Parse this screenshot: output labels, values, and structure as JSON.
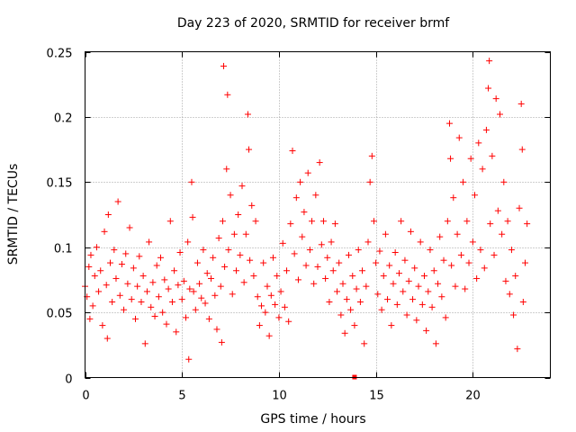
{
  "chart_data": {
    "type": "scatter",
    "title": "Day 223 of 2020, SRMTID for receiver brmf",
    "xlabel": "GPS time / hours",
    "ylabel": "SRMTID / TECUs",
    "xlim": [
      0,
      24
    ],
    "ylim": [
      0,
      0.25
    ],
    "xticks": [
      0,
      5,
      10,
      15,
      20
    ],
    "yticks": [
      0,
      0.05,
      0.1,
      0.15,
      0.2,
      0.25
    ],
    "xtick_labels": [
      "0",
      "5",
      "10",
      "15",
      "20"
    ],
    "ytick_labels": [
      "0",
      "0.05",
      "0.1",
      "0.15",
      "0.2",
      "0.25"
    ],
    "grid": true,
    "marker": "+",
    "color": "#ff0000",
    "series": [
      {
        "name": "SRMTID",
        "points": [
          [
            0.0,
            0.07
          ],
          [
            0.1,
            0.062
          ],
          [
            0.2,
            0.085
          ],
          [
            0.25,
            0.045
          ],
          [
            0.3,
            0.094
          ],
          [
            0.4,
            0.055
          ],
          [
            0.5,
            0.078
          ],
          [
            0.6,
            0.1
          ],
          [
            0.7,
            0.066
          ],
          [
            0.8,
            0.082
          ],
          [
            0.9,
            0.04
          ],
          [
            1.0,
            0.112
          ],
          [
            1.1,
            0.071
          ],
          [
            1.15,
            0.03
          ],
          [
            1.2,
            0.125
          ],
          [
            1.3,
            0.088
          ],
          [
            1.4,
            0.058
          ],
          [
            1.5,
            0.098
          ],
          [
            1.6,
            0.076
          ],
          [
            1.7,
            0.135
          ],
          [
            1.8,
            0.063
          ],
          [
            1.9,
            0.087
          ],
          [
            2.0,
            0.052
          ],
          [
            2.1,
            0.095
          ],
          [
            2.2,
            0.072
          ],
          [
            2.3,
            0.115
          ],
          [
            2.4,
            0.06
          ],
          [
            2.5,
            0.084
          ],
          [
            2.6,
            0.045
          ],
          [
            2.7,
            0.07
          ],
          [
            2.8,
            0.093
          ],
          [
            2.9,
            0.058
          ],
          [
            3.0,
            0.078
          ],
          [
            3.1,
            0.026
          ],
          [
            3.2,
            0.066
          ],
          [
            3.3,
            0.104
          ],
          [
            3.4,
            0.054
          ],
          [
            3.5,
            0.073
          ],
          [
            3.6,
            0.047
          ],
          [
            3.7,
            0.086
          ],
          [
            3.8,
            0.062
          ],
          [
            3.9,
            0.092
          ],
          [
            4.0,
            0.05
          ],
          [
            4.1,
            0.075
          ],
          [
            4.2,
            0.041
          ],
          [
            4.3,
            0.068
          ],
          [
            4.4,
            0.12
          ],
          [
            4.5,
            0.058
          ],
          [
            4.6,
            0.082
          ],
          [
            4.7,
            0.035
          ],
          [
            4.8,
            0.071
          ],
          [
            4.9,
            0.096
          ],
          [
            5.0,
            0.06
          ],
          [
            5.1,
            0.074
          ],
          [
            5.2,
            0.046
          ],
          [
            5.3,
            0.104
          ],
          [
            5.35,
            0.014
          ],
          [
            5.4,
            0.068
          ],
          [
            5.5,
            0.15
          ],
          [
            5.55,
            0.123
          ],
          [
            5.6,
            0.066
          ],
          [
            5.7,
            0.052
          ],
          [
            5.8,
            0.088
          ],
          [
            5.9,
            0.072
          ],
          [
            6.0,
            0.061
          ],
          [
            6.1,
            0.098
          ],
          [
            6.2,
            0.057
          ],
          [
            6.3,
            0.08
          ],
          [
            6.4,
            0.045
          ],
          [
            6.5,
            0.076
          ],
          [
            6.6,
            0.092
          ],
          [
            6.7,
            0.063
          ],
          [
            6.8,
            0.037
          ],
          [
            6.9,
            0.107
          ],
          [
            7.0,
            0.07
          ],
          [
            7.05,
            0.027
          ],
          [
            7.1,
            0.12
          ],
          [
            7.15,
            0.239
          ],
          [
            7.2,
            0.085
          ],
          [
            7.3,
            0.16
          ],
          [
            7.35,
            0.217
          ],
          [
            7.4,
            0.098
          ],
          [
            7.5,
            0.14
          ],
          [
            7.6,
            0.064
          ],
          [
            7.7,
            0.11
          ],
          [
            7.8,
            0.082
          ],
          [
            7.9,
            0.125
          ],
          [
            8.0,
            0.094
          ],
          [
            8.1,
            0.147
          ],
          [
            8.2,
            0.073
          ],
          [
            8.3,
            0.11
          ],
          [
            8.4,
            0.202
          ],
          [
            8.45,
            0.175
          ],
          [
            8.5,
            0.09
          ],
          [
            8.6,
            0.132
          ],
          [
            8.7,
            0.078
          ],
          [
            8.8,
            0.12
          ],
          [
            8.9,
            0.062
          ],
          [
            9.0,
            0.04
          ],
          [
            9.1,
            0.055
          ],
          [
            9.2,
            0.088
          ],
          [
            9.3,
            0.05
          ],
          [
            9.4,
            0.07
          ],
          [
            9.5,
            0.032
          ],
          [
            9.6,
            0.063
          ],
          [
            9.7,
            0.092
          ],
          [
            9.8,
            0.056
          ],
          [
            9.9,
            0.078
          ],
          [
            10.0,
            0.046
          ],
          [
            10.1,
            0.066
          ],
          [
            10.2,
            0.103
          ],
          [
            10.3,
            0.054
          ],
          [
            10.4,
            0.082
          ],
          [
            10.5,
            0.043
          ],
          [
            10.6,
            0.118
          ],
          [
            10.7,
            0.174
          ],
          [
            10.8,
            0.095
          ],
          [
            10.9,
            0.138
          ],
          [
            11.0,
            0.075
          ],
          [
            11.1,
            0.15
          ],
          [
            11.2,
            0.108
          ],
          [
            11.3,
            0.127
          ],
          [
            11.4,
            0.086
          ],
          [
            11.5,
            0.157
          ],
          [
            11.6,
            0.098
          ],
          [
            11.7,
            0.12
          ],
          [
            11.8,
            0.072
          ],
          [
            11.9,
            0.14
          ],
          [
            12.0,
            0.085
          ],
          [
            12.1,
            0.165
          ],
          [
            12.2,
            0.102
          ],
          [
            12.3,
            0.12
          ],
          [
            12.4,
            0.076
          ],
          [
            12.5,
            0.092
          ],
          [
            12.6,
            0.058
          ],
          [
            12.7,
            0.104
          ],
          [
            12.8,
            0.082
          ],
          [
            12.9,
            0.118
          ],
          [
            13.0,
            0.066
          ],
          [
            13.1,
            0.088
          ],
          [
            13.2,
            0.048
          ],
          [
            13.3,
            0.072
          ],
          [
            13.4,
            0.034
          ],
          [
            13.5,
            0.06
          ],
          [
            13.6,
            0.094
          ],
          [
            13.7,
            0.052
          ],
          [
            13.8,
            0.078
          ],
          [
            13.9,
            0.04
          ],
          [
            14.0,
            0.068
          ],
          [
            14.1,
            0.098
          ],
          [
            14.2,
            0.058
          ],
          [
            14.3,
            0.082
          ],
          [
            14.4,
            0.026
          ],
          [
            14.5,
            0.07
          ],
          [
            14.6,
            0.104
          ],
          [
            14.7,
            0.15
          ],
          [
            14.8,
            0.17
          ],
          [
            14.9,
            0.12
          ],
          [
            15.0,
            0.088
          ],
          [
            15.1,
            0.064
          ],
          [
            15.2,
            0.097
          ],
          [
            15.3,
            0.052
          ],
          [
            15.4,
            0.078
          ],
          [
            15.5,
            0.11
          ],
          [
            15.6,
            0.06
          ],
          [
            15.7,
            0.086
          ],
          [
            15.8,
            0.04
          ],
          [
            15.9,
            0.072
          ],
          [
            16.0,
            0.096
          ],
          [
            16.1,
            0.056
          ],
          [
            16.2,
            0.08
          ],
          [
            16.3,
            0.12
          ],
          [
            16.4,
            0.066
          ],
          [
            16.5,
            0.09
          ],
          [
            16.6,
            0.048
          ],
          [
            16.7,
            0.074
          ],
          [
            16.8,
            0.112
          ],
          [
            16.9,
            0.06
          ],
          [
            17.0,
            0.084
          ],
          [
            17.1,
            0.044
          ],
          [
            17.2,
            0.07
          ],
          [
            17.3,
            0.104
          ],
          [
            17.4,
            0.056
          ],
          [
            17.5,
            0.078
          ],
          [
            17.6,
            0.036
          ],
          [
            17.7,
            0.066
          ],
          [
            17.8,
            0.098
          ],
          [
            17.9,
            0.054
          ],
          [
            18.0,
            0.082
          ],
          [
            18.1,
            0.026
          ],
          [
            18.2,
            0.072
          ],
          [
            18.3,
            0.108
          ],
          [
            18.4,
            0.062
          ],
          [
            18.5,
            0.09
          ],
          [
            18.6,
            0.046
          ],
          [
            18.7,
            0.12
          ],
          [
            18.8,
            0.195
          ],
          [
            18.85,
            0.168
          ],
          [
            18.9,
            0.086
          ],
          [
            19.0,
            0.138
          ],
          [
            19.1,
            0.07
          ],
          [
            19.2,
            0.11
          ],
          [
            19.3,
            0.184
          ],
          [
            19.4,
            0.094
          ],
          [
            19.5,
            0.15
          ],
          [
            19.6,
            0.068
          ],
          [
            19.7,
            0.12
          ],
          [
            19.8,
            0.088
          ],
          [
            19.9,
            0.168
          ],
          [
            20.0,
            0.104
          ],
          [
            20.1,
            0.14
          ],
          [
            20.2,
            0.076
          ],
          [
            20.3,
            0.18
          ],
          [
            20.4,
            0.098
          ],
          [
            20.5,
            0.16
          ],
          [
            20.6,
            0.084
          ],
          [
            20.7,
            0.19
          ],
          [
            20.8,
            0.222
          ],
          [
            20.85,
            0.243
          ],
          [
            20.9,
            0.118
          ],
          [
            21.0,
            0.17
          ],
          [
            21.1,
            0.094
          ],
          [
            21.2,
            0.214
          ],
          [
            21.3,
            0.128
          ],
          [
            21.4,
            0.202
          ],
          [
            21.5,
            0.11
          ],
          [
            21.6,
            0.15
          ],
          [
            21.7,
            0.074
          ],
          [
            21.8,
            0.12
          ],
          [
            21.9,
            0.064
          ],
          [
            22.0,
            0.098
          ],
          [
            22.1,
            0.048
          ],
          [
            22.2,
            0.078
          ],
          [
            22.3,
            0.022
          ],
          [
            22.4,
            0.13
          ],
          [
            22.5,
            0.21
          ],
          [
            22.55,
            0.175
          ],
          [
            22.6,
            0.058
          ],
          [
            22.7,
            0.088
          ],
          [
            22.8,
            0.118
          ]
        ]
      }
    ],
    "outliers": [
      [
        13.9,
        0.0
      ]
    ]
  }
}
